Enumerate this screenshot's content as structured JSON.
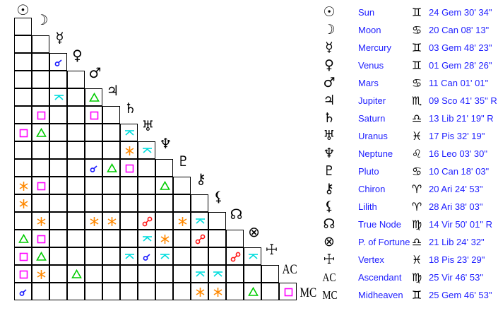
{
  "planets": [
    {
      "name": "Sun",
      "icon": "sun",
      "sign": "gemini",
      "position": "24 Gem 30' 34\""
    },
    {
      "name": "Moon",
      "icon": "moon",
      "sign": "cancer",
      "position": "20 Can 08' 13\""
    },
    {
      "name": "Mercury",
      "icon": "mercury",
      "sign": "gemini",
      "position": "03 Gem 48' 23\""
    },
    {
      "name": "Venus",
      "icon": "venus",
      "sign": "gemini",
      "position": "01 Gem 28' 26\""
    },
    {
      "name": "Mars",
      "icon": "mars",
      "sign": "cancer",
      "position": "11 Can 01' 01\""
    },
    {
      "name": "Jupiter",
      "icon": "jupiter",
      "sign": "scorpio",
      "position": "09 Sco 41' 35\" R"
    },
    {
      "name": "Saturn",
      "icon": "saturn",
      "sign": "libra",
      "position": "13 Lib 21' 19\" R"
    },
    {
      "name": "Uranus",
      "icon": "uranus",
      "sign": "pisces",
      "position": "17 Pis 32' 19\""
    },
    {
      "name": "Neptune",
      "icon": "neptune",
      "sign": "leo",
      "position": "16 Leo 03' 30\""
    },
    {
      "name": "Pluto",
      "icon": "pluto",
      "sign": "cancer",
      "position": "10 Can 18' 03\""
    },
    {
      "name": "Chiron",
      "icon": "chiron",
      "sign": "aries",
      "position": "20 Ari 24' 53\""
    },
    {
      "name": "Lilith",
      "icon": "lilith",
      "sign": "aries",
      "position": "28 Ari 38' 03\""
    },
    {
      "name": "True Node",
      "icon": "true-node",
      "sign": "virgo",
      "position": "14 Vir 50' 01\" R"
    },
    {
      "name": "P. of Fortune",
      "icon": "part-of-fortune",
      "sign": "libra",
      "position": "21 Lib 24' 32\""
    },
    {
      "name": "Vertex",
      "icon": "vertex",
      "sign": "pisces",
      "position": "18 Pis 23' 29\""
    },
    {
      "name": "Ascendant",
      "icon": "ascendant",
      "label": "AC",
      "sign": "virgo",
      "position": "25 Vir 46' 53\""
    },
    {
      "name": "Midheaven",
      "icon": "midheaven",
      "label": "MC",
      "sign": "gemini",
      "position": "25 Gem 46' 53\""
    }
  ],
  "aspect_colors": {
    "conjunction": "#1a1aff",
    "opposition": "#ff1a1a",
    "trine": "#00cc00",
    "square": "#ff00ff",
    "sextile": "#ff8800",
    "quincunx": "#00dddd"
  },
  "aspects": [
    {
      "a": "Venus",
      "b": "Mercury",
      "type": "conjunction"
    },
    {
      "a": "Jupiter",
      "b": "Mercury",
      "type": "quincunx"
    },
    {
      "a": "Jupiter",
      "b": "Mars",
      "type": "trine"
    },
    {
      "a": "Saturn",
      "b": "Moon",
      "type": "square"
    },
    {
      "a": "Saturn",
      "b": "Mars",
      "type": "square"
    },
    {
      "a": "Uranus",
      "b": "Sun",
      "type": "square"
    },
    {
      "a": "Uranus",
      "b": "Moon",
      "type": "trine"
    },
    {
      "a": "Uranus",
      "b": "Saturn",
      "type": "quincunx"
    },
    {
      "a": "Neptune",
      "b": "Saturn",
      "type": "sextile"
    },
    {
      "a": "Neptune",
      "b": "Uranus",
      "type": "quincunx"
    },
    {
      "a": "Pluto",
      "b": "Mars",
      "type": "conjunction"
    },
    {
      "a": "Pluto",
      "b": "Jupiter",
      "type": "trine"
    },
    {
      "a": "Pluto",
      "b": "Saturn",
      "type": "square"
    },
    {
      "a": "Chiron",
      "b": "Sun",
      "type": "sextile"
    },
    {
      "a": "Chiron",
      "b": "Moon",
      "type": "square"
    },
    {
      "a": "Chiron",
      "b": "Neptune",
      "type": "trine"
    },
    {
      "a": "Lilith",
      "b": "Sun",
      "type": "sextile"
    },
    {
      "a": "True Node",
      "b": "Moon",
      "type": "sextile"
    },
    {
      "a": "True Node",
      "b": "Mars",
      "type": "sextile"
    },
    {
      "a": "True Node",
      "b": "Jupiter",
      "type": "sextile"
    },
    {
      "a": "True Node",
      "b": "Uranus",
      "type": "opposition"
    },
    {
      "a": "True Node",
      "b": "Pluto",
      "type": "sextile"
    },
    {
      "a": "True Node",
      "b": "Chiron",
      "type": "quincunx"
    },
    {
      "a": "P. of Fortune",
      "b": "Sun",
      "type": "trine"
    },
    {
      "a": "P. of Fortune",
      "b": "Moon",
      "type": "square"
    },
    {
      "a": "P. of Fortune",
      "b": "Uranus",
      "type": "quincunx"
    },
    {
      "a": "P. of Fortune",
      "b": "Neptune",
      "type": "sextile"
    },
    {
      "a": "P. of Fortune",
      "b": "Chiron",
      "type": "opposition"
    },
    {
      "a": "Vertex",
      "b": "Sun",
      "type": "square"
    },
    {
      "a": "Vertex",
      "b": "Moon",
      "type": "trine"
    },
    {
      "a": "Vertex",
      "b": "Saturn",
      "type": "quincunx"
    },
    {
      "a": "Vertex",
      "b": "Uranus",
      "type": "conjunction"
    },
    {
      "a": "Vertex",
      "b": "Neptune",
      "type": "quincunx"
    },
    {
      "a": "Vertex",
      "b": "True Node",
      "type": "opposition"
    },
    {
      "a": "Vertex",
      "b": "P. of Fortune",
      "type": "quincunx"
    },
    {
      "a": "Ascendant",
      "b": "Sun",
      "type": "square"
    },
    {
      "a": "Ascendant",
      "b": "Moon",
      "type": "sextile"
    },
    {
      "a": "Ascendant",
      "b": "Venus",
      "type": "trine"
    },
    {
      "a": "Ascendant",
      "b": "Chiron",
      "type": "quincunx"
    },
    {
      "a": "Ascendant",
      "b": "Lilith",
      "type": "quincunx"
    },
    {
      "a": "Midheaven",
      "b": "Sun",
      "type": "conjunction"
    },
    {
      "a": "Midheaven",
      "b": "Chiron",
      "type": "sextile"
    },
    {
      "a": "Midheaven",
      "b": "Lilith",
      "type": "sextile"
    },
    {
      "a": "Midheaven",
      "b": "P. of Fortune",
      "type": "trine"
    },
    {
      "a": "Midheaven",
      "b": "Ascendant",
      "type": "square"
    }
  ]
}
